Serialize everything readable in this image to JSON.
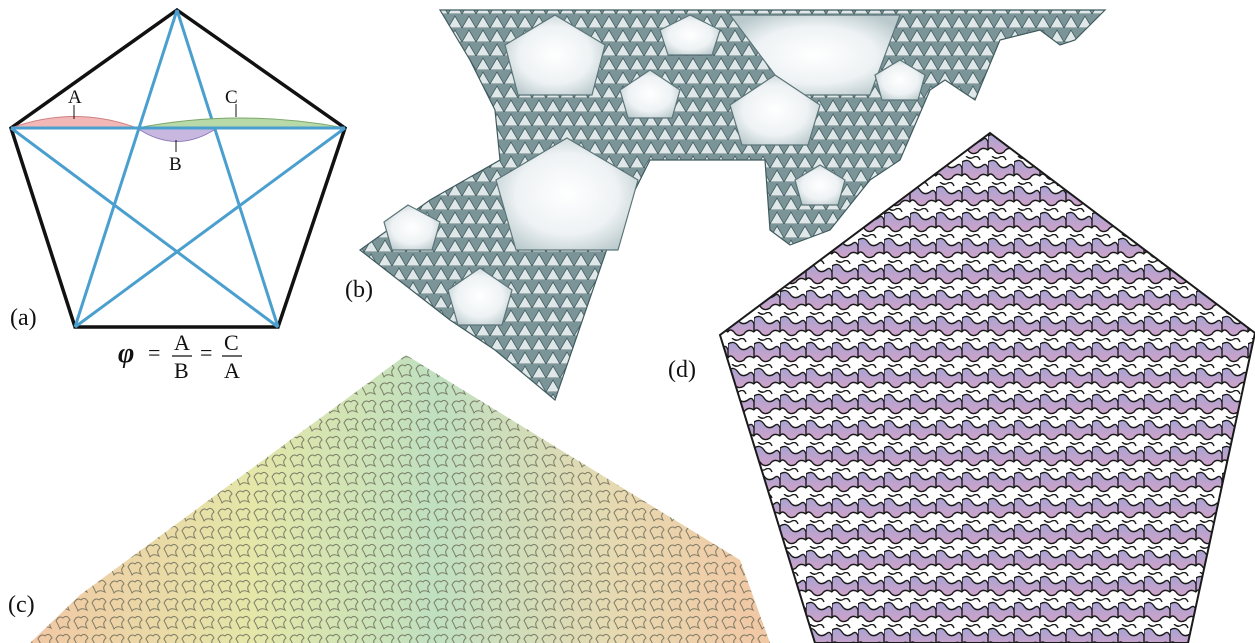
{
  "panels": {
    "a": {
      "label": "(a)"
    },
    "b": {
      "label": "(b)"
    },
    "c": {
      "label": "(c)"
    },
    "d": {
      "label": "(d)"
    }
  },
  "segments": {
    "A": "A",
    "B": "B",
    "C": "C"
  },
  "equation": {
    "phi": "φ",
    "equals1": "=",
    "num1": "A",
    "den1": "B",
    "equals2": "=",
    "num2": "C",
    "den2": "A"
  },
  "colors": {
    "pentagon_outline": "#111111",
    "star_lines": "#4a9fcf",
    "segment_A_fill": "#f2b8b8",
    "segment_B_fill": "#c8b8e0",
    "segment_C_fill": "#b8d9a8",
    "fractal_b_dark": "#4e6a70",
    "fractal_b_light": "#eef2f4",
    "fractal_d_fill": "#a59acb",
    "fractal_d_fill2": "#c9a2c9",
    "fractal_c_tint1": "#e4e7a8",
    "fractal_c_tint2": "#bfe0c0",
    "fractal_c_tint3": "#f2c7a4"
  }
}
